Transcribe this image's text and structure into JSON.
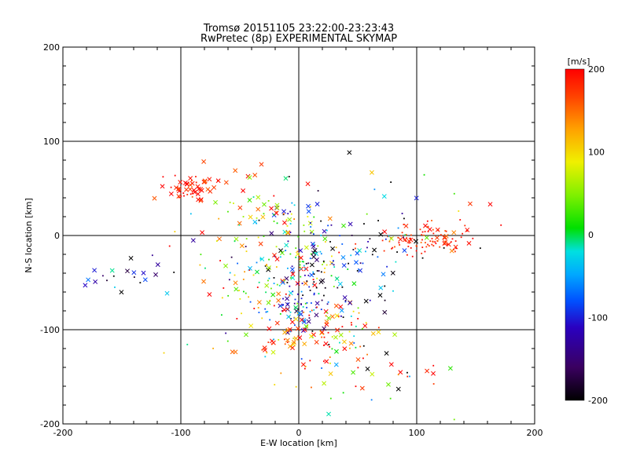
{
  "chart_data": {
    "type": "scatter",
    "title": "Tromsø 20151105 23:22:00-23:23:43",
    "subtitle": "RwPretec (8p) EXPERIMENTAL SKYMAP",
    "xlabel": "E-W location [km]",
    "ylabel": "N-S location [km]",
    "xlim": [
      -200,
      200
    ],
    "ylim": [
      -200,
      200
    ],
    "xticks": [
      "-200",
      "-100",
      "0",
      "100",
      "200"
    ],
    "yticks": [
      "-200",
      "-100",
      "0",
      "100",
      "200"
    ],
    "grid": true,
    "gridlines": [
      -100,
      0,
      100
    ],
    "colorbar": {
      "label": "[m/s]",
      "range": [
        -200,
        200
      ],
      "ticks": [
        "-200",
        "-100",
        "0",
        "100",
        "200"
      ],
      "colormap": "rainbow (black-purple-blue-cyan-green-yellow-orange-red)"
    },
    "markers": [
      "x",
      "dot"
    ],
    "clusters": [
      {
        "x": -95,
        "y": 50,
        "x_spread": 12,
        "y_spread": 7,
        "count": 45,
        "v": 190,
        "v_spread": 15,
        "x_marker_ratio": 0.7
      },
      {
        "x": -68,
        "y": 58,
        "x_spread": 18,
        "y_spread": 8,
        "count": 12,
        "v": 175,
        "v_spread": 20,
        "x_marker_ratio": 0.6
      },
      {
        "x": 105,
        "y": -5,
        "x_spread": 22,
        "y_spread": 8,
        "count": 90,
        "v": 185,
        "v_spread": 20,
        "x_marker_ratio": 0.15
      },
      {
        "x": 135,
        "y": 8,
        "x_spread": 15,
        "y_spread": 12,
        "count": 15,
        "v": 170,
        "v_spread": 30,
        "x_marker_ratio": 0.3
      },
      {
        "x": 0,
        "y": -20,
        "x_spread": 22,
        "y_spread": 28,
        "count": 160,
        "v": 0,
        "v_spread": 120,
        "x_marker_ratio": 0.3
      },
      {
        "x": 0,
        "y": -80,
        "x_spread": 10,
        "y_spread": 15,
        "count": 55,
        "v": -110,
        "v_spread": 40,
        "x_marker_ratio": 0.3
      },
      {
        "x": 10,
        "y": -110,
        "x_spread": 25,
        "y_spread": 22,
        "count": 120,
        "v": 140,
        "v_spread": 70,
        "x_marker_ratio": 0.45
      },
      {
        "x": 40,
        "y": -40,
        "x_spread": 30,
        "y_spread": 30,
        "count": 80,
        "v": -120,
        "v_spread": 90,
        "x_marker_ratio": 0.25
      },
      {
        "x": -30,
        "y": -70,
        "x_spread": 20,
        "y_spread": 30,
        "count": 50,
        "v": 40,
        "v_spread": 130,
        "x_marker_ratio": 0.35
      },
      {
        "x": -25,
        "y": 25,
        "x_spread": 20,
        "y_spread": 15,
        "count": 35,
        "v": 40,
        "v_spread": 80,
        "x_marker_ratio": 0.45
      },
      {
        "x": -145,
        "y": -45,
        "x_spread": 20,
        "y_spread": 10,
        "count": 22,
        "v": -150,
        "v_spread": 80,
        "x_marker_ratio": 0.7
      },
      {
        "x": 70,
        "y": -150,
        "x_spread": 35,
        "y_spread": 25,
        "count": 30,
        "v": 60,
        "v_spread": 160,
        "x_marker_ratio": 0.5
      },
      {
        "x": 70,
        "y": 20,
        "x_spread": 40,
        "y_spread": 30,
        "count": 25,
        "v": -80,
        "v_spread": 150,
        "x_marker_ratio": 0.3
      },
      {
        "x": -60,
        "y": -20,
        "x_spread": 30,
        "y_spread": 40,
        "count": 25,
        "v": 60,
        "v_spread": 150,
        "x_marker_ratio": 0.4
      }
    ]
  }
}
